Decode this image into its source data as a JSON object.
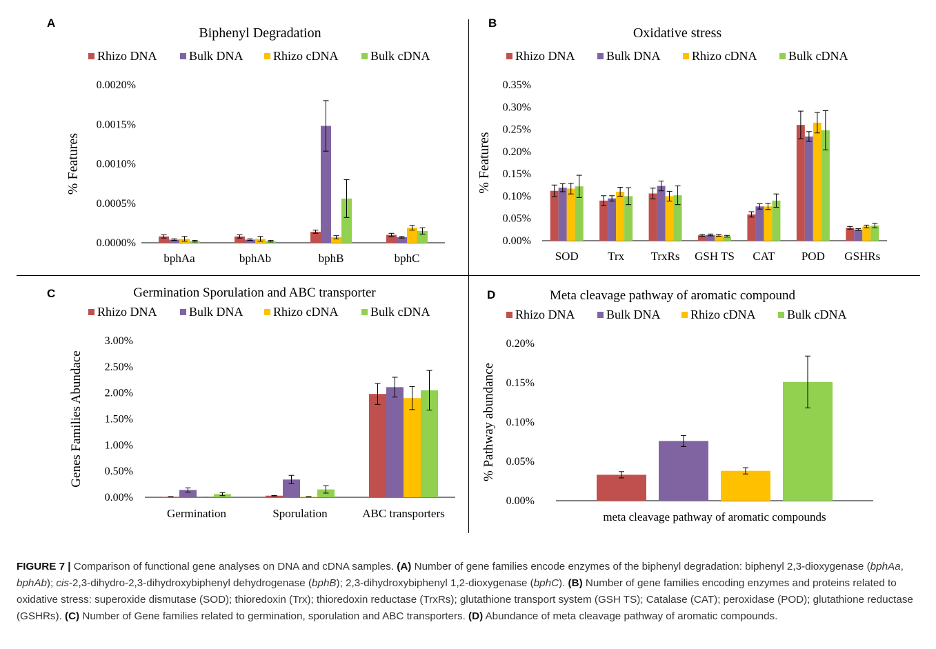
{
  "series_meta": [
    {
      "name": "Rhizo DNA",
      "color": "#C0504D"
    },
    {
      "name": "Bulk DNA",
      "color": "#8064A2"
    },
    {
      "name": "Rhizo cDNA",
      "color": "#FFC000"
    },
    {
      "name": "Bulk cDNA",
      "color": "#92D050"
    }
  ],
  "chart_data": [
    {
      "type": "bar",
      "panel": "A",
      "title": "Biphenyl Degradation",
      "ylabel": "%  Features",
      "categories": [
        "bphAa",
        "bphAb",
        "bphB",
        "bphC"
      ],
      "ylim": [
        0,
        0.002
      ],
      "yticks": [
        0.0,
        0.0005,
        0.001,
        0.0015,
        0.002
      ],
      "ytick_labels": [
        "0.0000%",
        "0.0005%",
        "0.0010%",
        "0.0015%",
        "0.0020%"
      ],
      "legend": "top",
      "series": [
        {
          "name": "Rhizo DNA",
          "values": [
            8e-05,
            8e-05,
            0.00014,
            0.0001
          ],
          "errors": [
            2e-05,
            2e-05,
            2e-05,
            2e-05
          ]
        },
        {
          "name": "Bulk DNA",
          "values": [
            4e-05,
            4e-05,
            0.00148,
            7e-05
          ],
          "errors": [
            1e-05,
            1e-05,
            0.00032,
            1e-05
          ]
        },
        {
          "name": "Rhizo cDNA",
          "values": [
            5e-05,
            5e-05,
            7e-05,
            0.00019
          ],
          "errors": [
            3e-05,
            3e-05,
            2e-05,
            3e-05
          ]
        },
        {
          "name": "Bulk cDNA",
          "values": [
            2e-05,
            2e-05,
            0.00056,
            0.00015
          ],
          "errors": [
            1e-05,
            1e-05,
            0.00024,
            4e-05
          ]
        }
      ]
    },
    {
      "type": "bar",
      "panel": "B",
      "title": "Oxidative stress",
      "ylabel": "% Features",
      "categories": [
        "SOD",
        "Trx",
        "TrxRs",
        "GSH TS",
        "CAT",
        "POD",
        "GSHRs"
      ],
      "ylim": [
        0,
        0.35
      ],
      "yticks": [
        0.0,
        0.05,
        0.1,
        0.15,
        0.2,
        0.25,
        0.3,
        0.35
      ],
      "ytick_labels": [
        "0.00%",
        "0.05%",
        "0.10%",
        "0.15%",
        "0.20%",
        "0.25%",
        "0.30%",
        "0.35%"
      ],
      "legend": "top",
      "series": [
        {
          "name": "Rhizo DNA",
          "values": [
            0.112,
            0.09,
            0.106,
            0.012,
            0.059,
            0.26,
            0.029
          ],
          "errors": [
            0.013,
            0.011,
            0.012,
            0.002,
            0.006,
            0.031,
            0.003
          ]
        },
        {
          "name": "Bulk DNA",
          "values": [
            0.119,
            0.095,
            0.123,
            0.013,
            0.077,
            0.234,
            0.025
          ],
          "errors": [
            0.009,
            0.006,
            0.011,
            0.002,
            0.006,
            0.011,
            0.002
          ]
        },
        {
          "name": "Rhizo cDNA",
          "values": [
            0.117,
            0.11,
            0.1,
            0.012,
            0.077,
            0.265,
            0.032
          ],
          "errors": [
            0.012,
            0.01,
            0.011,
            0.002,
            0.007,
            0.023,
            0.003
          ]
        },
        {
          "name": "Bulk cDNA",
          "values": [
            0.122,
            0.1,
            0.102,
            0.01,
            0.09,
            0.248,
            0.034
          ],
          "errors": [
            0.025,
            0.019,
            0.021,
            0.002,
            0.015,
            0.044,
            0.005
          ]
        }
      ]
    },
    {
      "type": "bar",
      "panel": "C",
      "title": "Germination  Sporulation  and  ABC  transporter",
      "ylabel": "Genes Families Abundace",
      "categories": [
        "Germination",
        "Sporulation",
        "ABC transporters"
      ],
      "ylim": [
        0,
        0.03
      ],
      "yticks": [
        0.0,
        0.005,
        0.01,
        0.015,
        0.02,
        0.025,
        0.03
      ],
      "ytick_labels": [
        "0.00%",
        "0.50%",
        "1.00%",
        "1.50%",
        "2.00%",
        "2.50%",
        "3.00%"
      ],
      "legend": "top",
      "series": [
        {
          "name": "Rhizo DNA",
          "values": [
            0.0001,
            0.0003,
            0.0198
          ],
          "errors": [
            2e-05,
            5e-05,
            0.002
          ]
        },
        {
          "name": "Bulk DNA",
          "values": [
            0.0014,
            0.0034,
            0.0211
          ],
          "errors": [
            0.0004,
            0.0008,
            0.0019
          ]
        },
        {
          "name": "Rhizo cDNA",
          "values": [
            0.0,
            0.0001,
            0.019
          ],
          "errors": [
            1e-05,
            2e-05,
            0.0022
          ]
        },
        {
          "name": "Bulk cDNA",
          "values": [
            0.0006,
            0.0015,
            0.0205
          ],
          "errors": [
            0.0003,
            0.0007,
            0.0038
          ]
        }
      ]
    },
    {
      "type": "bar",
      "panel": "D",
      "title": "Meta  cleavage  pathway  of  aromatic  compound",
      "ylabel": "% Pathway  abundance",
      "categories": [
        "meta cleavage pathway of aromatic compounds"
      ],
      "ylim": [
        0,
        0.2
      ],
      "yticks": [
        0.0,
        0.05,
        0.1,
        0.15,
        0.2
      ],
      "ytick_labels": [
        "0.00%",
        "0.05%",
        "0.10%",
        "0.15%",
        "0.20%"
      ],
      "legend": "top",
      "series": [
        {
          "name": "Rhizo DNA",
          "values": [
            0.033
          ],
          "errors": [
            0.004
          ]
        },
        {
          "name": "Bulk DNA",
          "values": [
            0.076
          ],
          "errors": [
            0.007
          ]
        },
        {
          "name": "Rhizo cDNA",
          "values": [
            0.038
          ],
          "errors": [
            0.004
          ]
        },
        {
          "name": "Bulk cDNA",
          "values": [
            0.151
          ],
          "errors": [
            0.033
          ]
        }
      ]
    }
  ],
  "caption": {
    "figure_label": "FIGURE 7 |",
    "intro": " Comparison of functional gene analyses on DNA and cDNA samples. ",
    "a_label": "(A)",
    "a_text_1": " Number of gene families encode enzymes of the biphenyl degradation: biphenyl 2,3-dioxygenase (",
    "a_gene_1": "bphAa",
    "a_sep_1": ", ",
    "a_gene_2": "bphAb",
    "a_text_2": "); ",
    "a_cis": "cis",
    "a_text_3": "-2,3-dihydro-2,3-dihydroxybiphenyl dehydrogenase (",
    "a_gene_3": "bphB",
    "a_text_4": "); 2,3-dihydroxybiphenyl 1,2-dioxygenase (",
    "a_gene_4": "bphC",
    "a_text_5": "). ",
    "b_label": "(B)",
    "b_text": " Number of gene families encoding enzymes and proteins related to oxidative stress: superoxide dismutase (SOD); thioredoxin (Trx); thioredoxin reductase (TrxRs); glutathione transport system (GSH TS); Catalase (CAT); peroxidase (POD); glutathione reductase (GSHRs). ",
    "c_label": "(C)",
    "c_text": " Number of Gene families related to germination, sporulation and ABC transporters. ",
    "d_label": "(D)",
    "d_text": " Abundance of meta cleavage pathway of aromatic compounds."
  }
}
